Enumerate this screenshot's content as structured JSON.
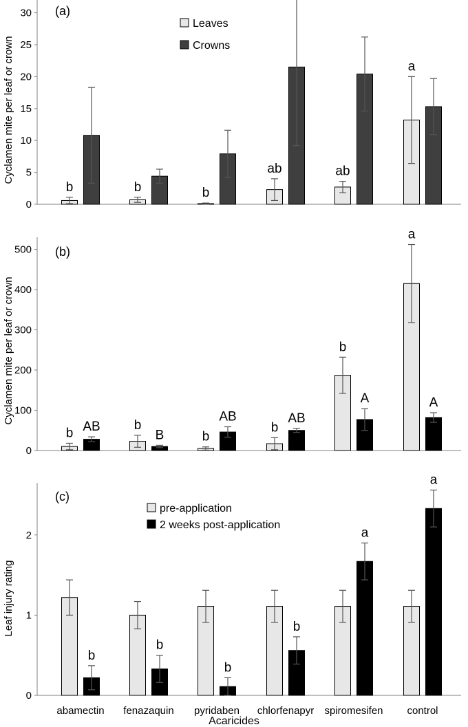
{
  "chart_data": [
    {
      "type": "bar",
      "panel_label": "(a)",
      "ylabel": "Cyclamen mite per leaf or crown",
      "xlabel": "",
      "ylim": [
        0,
        32
      ],
      "yticks": [
        0,
        5,
        10,
        15,
        20,
        25,
        30
      ],
      "ytick_labels": [
        "0",
        "5",
        "10",
        "15",
        "20",
        "25",
        "30"
      ],
      "categories": [
        "abamectin",
        "fenazaquin",
        "pyridaben",
        "chlorfenapyr",
        "spiromesifen",
        "control"
      ],
      "legend": "top-center",
      "series": [
        {
          "name": "Leaves",
          "color": "#e7e7e7",
          "values": [
            0.6,
            0.7,
            0.1,
            2.3,
            2.7,
            13.2
          ],
          "errors": [
            0.5,
            0.4,
            0.1,
            1.7,
            0.9,
            6.8
          ],
          "labels": [
            "b",
            "b",
            "b",
            "ab",
            "ab",
            "a"
          ]
        },
        {
          "name": "Crowns",
          "color": "#3f3f3f",
          "values": [
            10.8,
            4.4,
            7.9,
            21.5,
            20.4,
            15.3
          ],
          "errors": [
            7.5,
            1.1,
            3.7,
            12.3,
            5.8,
            4.4
          ],
          "labels": [
            "",
            "",
            "",
            "",
            "",
            ""
          ]
        }
      ]
    },
    {
      "type": "bar",
      "panel_label": "(b)",
      "ylabel": "Cyclamen mite per leaf or crown",
      "xlabel": "",
      "ylim": [
        0,
        530
      ],
      "yticks": [
        0,
        100,
        200,
        300,
        400,
        500
      ],
      "ytick_labels": [
        "0",
        "100",
        "200",
        "300",
        "400",
        "500"
      ],
      "categories": [
        "abamectin",
        "fenazaquin",
        "pyridaben",
        "chlorfenapyr",
        "spiromesifen",
        "control"
      ],
      "series": [
        {
          "name": "pre-application",
          "color": "#e7e7e7",
          "values": [
            10,
            23,
            5,
            17,
            187,
            415
          ],
          "errors": [
            8,
            15,
            4,
            15,
            45,
            97
          ],
          "labels": [
            "b",
            "b",
            "b",
            "b",
            "b",
            "a"
          ]
        },
        {
          "name": "2 weeks post-application",
          "color": "#000000",
          "values": [
            28,
            10,
            46,
            50,
            77,
            82
          ],
          "errors": [
            6,
            3,
            13,
            5,
            27,
            12
          ],
          "labels": [
            "AB",
            "B",
            "AB",
            "AB",
            "A",
            "A"
          ]
        }
      ]
    },
    {
      "type": "bar",
      "panel_label": "(c)",
      "ylabel": "Leaf injury rating",
      "xlabel": "Acaricides",
      "ylim": [
        0,
        2.65
      ],
      "yticks": [
        0,
        1,
        2
      ],
      "ytick_labels": [
        "0",
        "1",
        "2"
      ],
      "categories": [
        "abamectin",
        "fenazaquin",
        "pyridaben",
        "chlorfenapyr",
        "spiromesifen",
        "control"
      ],
      "legend": "top-center",
      "series": [
        {
          "name": "pre-application",
          "color": "#e7e7e7",
          "values": [
            1.22,
            1.0,
            1.11,
            1.11,
            1.11,
            1.11
          ],
          "errors": [
            0.22,
            0.17,
            0.2,
            0.2,
            0.2,
            0.2
          ],
          "labels": [
            "",
            "",
            "",
            "",
            "",
            ""
          ]
        },
        {
          "name": "2 weeks post-application",
          "color": "#000000",
          "values": [
            0.22,
            0.33,
            0.11,
            0.56,
            1.67,
            2.33
          ],
          "errors": [
            0.15,
            0.17,
            0.11,
            0.17,
            0.23,
            0.23
          ],
          "labels": [
            "b",
            "b",
            "b",
            "b",
            "a",
            "a"
          ]
        }
      ]
    }
  ]
}
